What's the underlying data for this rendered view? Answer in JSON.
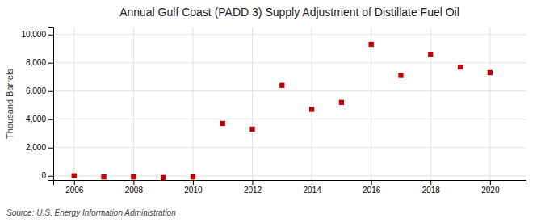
{
  "chart_data": {
    "type": "scatter",
    "title": "Annual Gulf Coast (PADD 3) Supply Adjustment of Distillate Fuel Oil",
    "ylabel": "Thousand Barrels",
    "source": "Source: U.S. Energy Information Administration",
    "x": [
      2006,
      2007,
      2008,
      2009,
      2010,
      2011,
      2012,
      2013,
      2014,
      2015,
      2016,
      2017,
      2018,
      2019,
      2020
    ],
    "values": [
      5,
      -80,
      -80,
      -120,
      -80,
      3700,
      3300,
      6400,
      4700,
      5200,
      9300,
      7100,
      8600,
      7700,
      7300
    ],
    "color": "#c00000",
    "marker": "square",
    "xlim": [
      2005.3,
      2021.2
    ],
    "xticks": [
      2006,
      2008,
      2010,
      2012,
      2014,
      2016,
      2018,
      2020
    ],
    "ylim": [
      -300,
      10500
    ],
    "yticks": [
      0,
      {
        "value": 2000,
        "label": "2,000"
      },
      {
        "value": 4000,
        "label": "4,000"
      },
      {
        "value": 6000,
        "label": "6,000"
      },
      {
        "value": 8000,
        "label": "8,000"
      },
      {
        "value": 10000,
        "label": "10,000"
      }
    ],
    "grid": true
  }
}
